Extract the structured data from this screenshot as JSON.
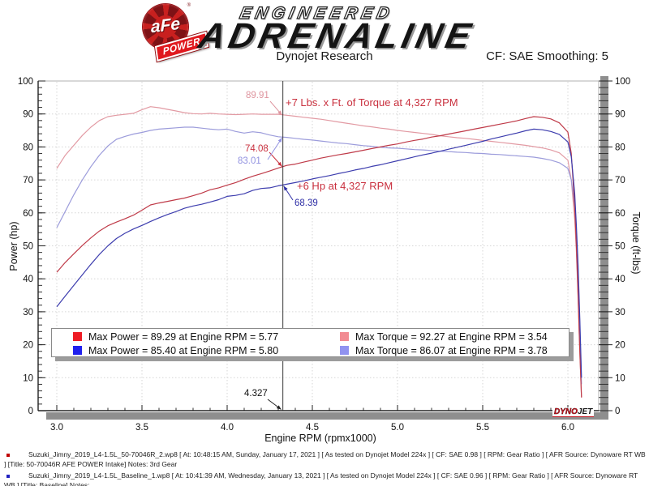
{
  "header": {
    "logo": {
      "afe": "aFe",
      "power": "POWER",
      "engineered": "ENGINEERED",
      "adrenaline": "ADRENALINE"
    }
  },
  "titlebar": {
    "title": "Dynojet Research",
    "cf": "CF: SAE Smoothing: 5"
  },
  "callouts": {
    "torque_afe_value": "89.91",
    "torque_gain": "+7 Lbs. x Ft. of Torque at 4,327 RPM",
    "power_afe_value": "74.08",
    "torque_base_value": "83.01",
    "hp_gain": "+6 Hp at 4,327 RPM",
    "power_base_value": "68.39",
    "cursor_value": "4.327"
  },
  "legend": {
    "entries": [
      {
        "swatch": "red",
        "label": "Max Power = 89.29 at Engine RPM = 5.77"
      },
      {
        "swatch": "pink",
        "label": "Max Torque = 92.27 at Engine RPM = 3.54"
      },
      {
        "swatch": "blue",
        "label": "Max Power = 85.40 at Engine RPM = 5.80"
      },
      {
        "swatch": "lblue",
        "label": "Max Torque = 86.07 at Engine RPM = 3.78"
      }
    ]
  },
  "dynojet": {
    "dyno": "DYNO",
    "jet": "JET"
  },
  "footnotes": [
    {
      "bullet_color": "#c00000",
      "text": "Suzuki_Jimny_2019_L4-1.5L_50-70046R_2.wp8 [ At: 10:48:15 AM, Sunday, January 17, 2021 ] [ As tested on Dynojet Model 224x ] [ CF: SAE 0.98 ] [ RPM: Gear Ratio ] [ AFR Source: Dynoware RT WB ] [Title: 50-70046R AFE POWER Intake]  Notes: 3rd Gear"
    },
    {
      "bullet_color": "#2222c0",
      "text": "Suzuki_Jimny_2019_L4-1.5L_Baseline_1.wp8 [ At: 10:41:39 AM, Wednesday, January 13, 2021 ] [ As tested on Dynojet Model 224x ] [ CF: SAE 0.96 ] [ RPM: Gear Ratio ] [ AFR Source: Dynoware RT WB ] [Title: Baseline]  Notes:"
    }
  ],
  "colors": {
    "power_red": "#bf3a48",
    "torque_pink": "#e29aa3",
    "power_blue": "#3d3dae",
    "torque_lightblue": "#9c9cdb",
    "legend_red": "#ee1c25",
    "legend_blue": "#2020ee",
    "legend_pink": "#f28b92",
    "legend_lightblue": "#9193f0",
    "callout_red": "#c9303e",
    "grid": "#d6d6d6",
    "axis_shadow_bar": "#8e8e8e",
    "cursor_line": "#3a3a3a",
    "afe_red": "#c8201f"
  },
  "chart_data": {
    "type": "line",
    "title": "Dynojet Research",
    "smoothing": "CF: SAE Smoothing: 5",
    "x_axis": {
      "label": "Engine RPM (rpmx1000)",
      "min": 2.89,
      "max": 6.18,
      "major_start": 3.0,
      "major_end": 6.0,
      "major_step": 0.5,
      "minor_step": 0.1,
      "minor_end": 6.1,
      "grid": true
    },
    "y_axis": {
      "left_label": "Power (hp)",
      "right_label": "Torque (ft-lbs)",
      "min": 0,
      "max": 100,
      "major_step": 10,
      "minor_step": 2,
      "grid": true
    },
    "cursor_rpm": 4.327,
    "cursor_readouts": {
      "torque_afe": 89.91,
      "torque_baseline": 83.01,
      "power_afe": 74.08,
      "power_baseline": 68.39,
      "torque_gain": "+7 Lbs. x Ft.",
      "power_gain": "+6 Hp"
    },
    "max_points": [
      {
        "series": "power_afe",
        "value": 89.29,
        "rpm": 5.77
      },
      {
        "series": "power_baseline",
        "value": 85.4,
        "rpm": 5.8
      },
      {
        "series": "torque_afe",
        "value": 92.27,
        "rpm": 3.54
      },
      {
        "series": "torque_baseline",
        "value": 86.07,
        "rpm": 3.78
      }
    ],
    "x": [
      3.0,
      3.05,
      3.1,
      3.15,
      3.2,
      3.25,
      3.3,
      3.35,
      3.4,
      3.45,
      3.5,
      3.55,
      3.6,
      3.65,
      3.7,
      3.75,
      3.8,
      3.85,
      3.9,
      3.95,
      4.0,
      4.05,
      4.1,
      4.15,
      4.2,
      4.25,
      4.3,
      4.35,
      4.4,
      4.45,
      4.5,
      4.55,
      4.6,
      4.65,
      4.7,
      4.75,
      4.8,
      4.85,
      4.9,
      4.95,
      5.0,
      5.05,
      5.1,
      5.15,
      5.2,
      5.25,
      5.3,
      5.35,
      5.4,
      5.45,
      5.5,
      5.55,
      5.6,
      5.65,
      5.7,
      5.75,
      5.8,
      5.85,
      5.9,
      5.95,
      6.0,
      6.02,
      6.04,
      6.05,
      6.06,
      6.07,
      6.08
    ],
    "series": [
      {
        "id": "torque_afe",
        "name": "Torque 50-70046R AFE POWER Intake",
        "unit": "ft-lbs",
        "color": "#e29aa3",
        "values": [
          73.5,
          77.5,
          80.5,
          83.5,
          86,
          88,
          89.2,
          89.6,
          89.9,
          90.2,
          91.3,
          92.2,
          91.9,
          91.4,
          90.9,
          90.4,
          90.1,
          90,
          90.2,
          90,
          89.9,
          89.8,
          89.9,
          90,
          89.9,
          89.9,
          89.9,
          89.6,
          89.3,
          89,
          88.7,
          88.4,
          88,
          87.6,
          87.2,
          86.8,
          86.4,
          86.1,
          85.7,
          85.4,
          85,
          84.7,
          84.4,
          84.1,
          83.8,
          83.4,
          83.1,
          82.8,
          82.6,
          82.3,
          82,
          81.7,
          81.4,
          81.1,
          80.8,
          80.5,
          80.1,
          79.7,
          79.1,
          78.2,
          76,
          70,
          58,
          48,
          34,
          18,
          4
        ]
      },
      {
        "id": "torque_baseline",
        "name": "Torque Baseline",
        "unit": "ft-lbs",
        "color": "#9c9cdb",
        "values": [
          55.5,
          60.5,
          65.5,
          70,
          74,
          77.5,
          80.3,
          82.3,
          83.2,
          83.9,
          84.4,
          85,
          85.4,
          85.6,
          85.8,
          86,
          86,
          85.7,
          85.4,
          85.2,
          85.4,
          84.7,
          84.2,
          84.6,
          84.3,
          83.6,
          83.1,
          82.9,
          82.6,
          82.3,
          82.1,
          81.8,
          81.5,
          81.2,
          81,
          80.7,
          80.4,
          80.2,
          79.9,
          79.7,
          79.6,
          79.4,
          79.2,
          79.1,
          78.9,
          78.7,
          78.6,
          78.4,
          78.3,
          78.1,
          78,
          77.8,
          77.7,
          77.5,
          77.3,
          77.1,
          76.9,
          76.5,
          76,
          75.2,
          73.5,
          70,
          62,
          54,
          42,
          26,
          8
        ]
      },
      {
        "id": "power_afe",
        "name": "Power 50-70046R AFE POWER Intake",
        "unit": "hp",
        "color": "#bf3a48",
        "values": [
          42,
          45,
          47.6,
          50.1,
          52.4,
          54.5,
          56.1,
          57.2,
          58.2,
          59.3,
          60.8,
          62.4,
          63,
          63.5,
          64,
          64.5,
          65.2,
          66,
          67,
          67.6,
          68.4,
          69.2,
          70.2,
          71.1,
          71.9,
          72.7,
          73.6,
          74.4,
          74.8,
          75.4,
          76,
          76.6,
          77.1,
          77.6,
          78,
          78.5,
          79,
          79.5,
          80,
          80.5,
          80.9,
          81.5,
          82,
          82.4,
          83,
          83.4,
          83.9,
          84.4,
          84.9,
          85.4,
          85.9,
          86.4,
          86.9,
          87.4,
          87.9,
          88.6,
          89.2,
          89,
          88.5,
          87.3,
          84.5,
          78,
          62,
          50,
          35,
          18,
          4
        ]
      },
      {
        "id": "power_baseline",
        "name": "Power Baseline",
        "unit": "hp",
        "color": "#3d3dae",
        "values": [
          31.5,
          34.8,
          38,
          41.2,
          44.4,
          47.4,
          50,
          52.2,
          53.8,
          55.1,
          56.2,
          57.4,
          58.5,
          59.5,
          60.4,
          61.4,
          62.1,
          62.6,
          63.3,
          64,
          65,
          65.3,
          65.8,
          66.8,
          67.4,
          67.6,
          68.2,
          68.7,
          69.2,
          69.7,
          70.3,
          70.8,
          71.3,
          71.9,
          72.4,
          73,
          73.5,
          74.1,
          74.6,
          75.2,
          75.8,
          76.4,
          77,
          77.6,
          78.1,
          78.7,
          79.3,
          79.9,
          80.5,
          81.1,
          81.7,
          82.4,
          83,
          83.6,
          84.2,
          84.9,
          85.4,
          85.2,
          84.7,
          83.8,
          81.5,
          77,
          66,
          56,
          44,
          28,
          10
        ]
      }
    ]
  }
}
